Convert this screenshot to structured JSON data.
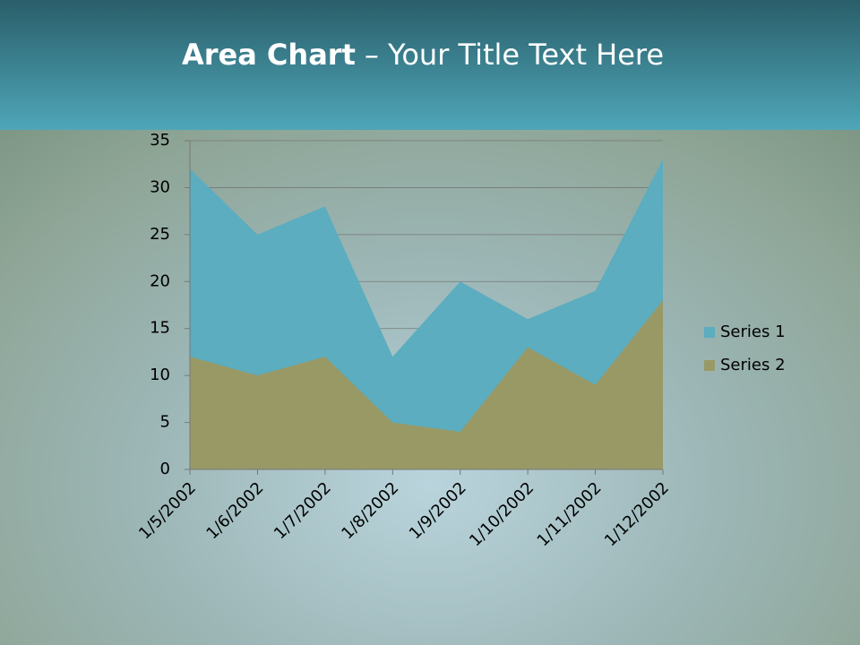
{
  "chart_data": {
    "type": "area",
    "title_bold": "Area Chart",
    "title": "– Your Title Text Here",
    "categories": [
      "1/5/2002",
      "1/6/2002",
      "1/7/2002",
      "1/8/2002",
      "1/9/2002",
      "1/10/2002",
      "1/11/2002",
      "1/12/2002"
    ],
    "series": [
      {
        "name": "Series 1",
        "color": "#5badbf",
        "values": [
          32,
          25,
          28,
          12,
          20,
          16,
          19,
          33
        ]
      },
      {
        "name": "Series 2",
        "color": "#999966",
        "values": [
          12,
          10,
          12,
          5,
          4,
          13,
          9,
          18
        ]
      }
    ],
    "ylim": [
      0,
      35
    ],
    "yticks": [
      0,
      5,
      10,
      15,
      20,
      25,
      30,
      35
    ],
    "grid": true,
    "legend": "right"
  }
}
